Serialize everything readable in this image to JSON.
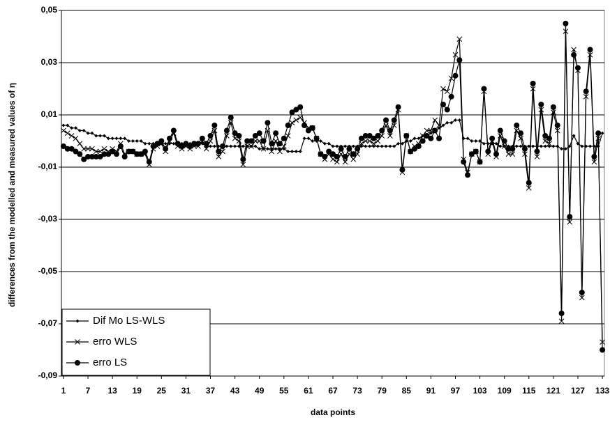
{
  "chart_data": {
    "type": "line",
    "x_label": "data points",
    "y_label": "differences from the modelled and  measured values of η",
    "x": [
      1,
      2,
      3,
      4,
      5,
      6,
      7,
      8,
      9,
      10,
      11,
      12,
      13,
      14,
      15,
      16,
      17,
      18,
      19,
      20,
      21,
      22,
      23,
      24,
      25,
      26,
      27,
      28,
      29,
      30,
      31,
      32,
      33,
      34,
      35,
      36,
      37,
      38,
      39,
      40,
      41,
      42,
      43,
      44,
      45,
      46,
      47,
      48,
      49,
      50,
      51,
      52,
      53,
      54,
      55,
      56,
      57,
      58,
      59,
      60,
      61,
      62,
      63,
      64,
      65,
      66,
      67,
      68,
      69,
      70,
      71,
      72,
      73,
      74,
      75,
      76,
      77,
      78,
      79,
      80,
      81,
      82,
      83,
      84,
      85,
      86,
      87,
      88,
      89,
      90,
      91,
      92,
      93,
      94,
      95,
      96,
      97,
      98,
      99,
      100,
      101,
      102,
      103,
      104,
      105,
      106,
      107,
      108,
      109,
      110,
      111,
      112,
      113,
      114,
      115,
      116,
      117,
      118,
      119,
      120,
      121,
      122,
      123,
      124,
      125,
      126,
      127,
      128,
      129,
      130,
      131,
      132,
      133
    ],
    "xlim": [
      0.5,
      133.5
    ],
    "xticks": [
      1,
      7,
      13,
      19,
      25,
      31,
      37,
      43,
      49,
      55,
      61,
      67,
      73,
      79,
      85,
      91,
      97,
      103,
      109,
      115,
      121,
      127,
      133
    ],
    "ylim": [
      -0.09,
      0.05
    ],
    "yticks": [
      {
        "value": -0.09,
        "label": "-0,09"
      },
      {
        "value": -0.07,
        "label": "-0,07"
      },
      {
        "value": -0.05,
        "label": "-0,05"
      },
      {
        "value": -0.03,
        "label": "-0,03"
      },
      {
        "value": -0.01,
        "label": "-0,01"
      },
      {
        "value": 0.01,
        "label": "0,01"
      },
      {
        "value": 0.03,
        "label": "0,03"
      },
      {
        "value": 0.05,
        "label": "0,05"
      }
    ],
    "grid": true,
    "legend": "lower left",
    "series": [
      {
        "name": "Dif Mo LS-WLS",
        "color": "#000000",
        "marker": "diamond",
        "values": [
          0.006,
          0.006,
          0.005,
          0.005,
          0.004,
          0.004,
          0.003,
          0.003,
          0.002,
          0.002,
          0.002,
          0.001,
          0.001,
          0.001,
          0.001,
          0.001,
          0,
          0,
          0,
          0,
          -0.001,
          -0.001,
          -0.001,
          -0.001,
          -0.001,
          -0.001,
          -0.001,
          -0.001,
          -0.001,
          -0.001,
          -0.001,
          -0.001,
          -0.001,
          -0.001,
          -0.001,
          -0.002,
          -0.002,
          -0.002,
          -0.002,
          -0.002,
          -0.002,
          -0.002,
          -0.002,
          -0.002,
          -0.002,
          -0.002,
          -0.002,
          -0.002,
          -0.003,
          -0.003,
          -0.003,
          -0.003,
          -0.003,
          -0.003,
          -0.003,
          -0.004,
          -0.004,
          -0.004,
          -0.004,
          0.001,
          0.001,
          0,
          0,
          0,
          -0.001,
          -0.001,
          -0.002,
          -0.002,
          -0.002,
          -0.002,
          -0.002,
          -0.002,
          -0.002,
          -0.002,
          -0.002,
          -0.002,
          -0.002,
          -0.002,
          -0.002,
          -0.002,
          -0.002,
          -0.002,
          -0.001,
          -0.001,
          0,
          0,
          0.001,
          0.001,
          0.002,
          0.002,
          0.003,
          0.004,
          0.005,
          0.006,
          0.007,
          0.007,
          0.008,
          0.008,
          0.001,
          0.001,
          0,
          0,
          0,
          -0.001,
          -0.001,
          -0.001,
          -0.001,
          -0.002,
          -0.002,
          -0.002,
          -0.002,
          -0.002,
          -0.002,
          -0.002,
          -0.002,
          -0.002,
          -0.002,
          -0.002,
          -0.002,
          -0.002,
          -0.002,
          -0.002,
          -0.003,
          -0.003,
          -0.002,
          0.002,
          -0.001,
          -0.002,
          -0.002,
          -0.002,
          -0.002,
          -0.002,
          0.003
        ]
      },
      {
        "name": "erro WLS",
        "color": "#000000",
        "marker": "cross",
        "values": [
          0.004,
          0.003,
          0.002,
          0.001,
          -0.001,
          -0.003,
          -0.003,
          -0.003,
          -0.004,
          -0.004,
          -0.003,
          -0.004,
          -0.003,
          -0.004,
          -0.001,
          -0.005,
          -0.004,
          -0.004,
          -0.005,
          -0.005,
          -0.005,
          -0.009,
          -0.003,
          -0.002,
          -0.001,
          -0.004,
          0,
          0.003,
          -0.002,
          -0.003,
          -0.002,
          -0.003,
          -0.002,
          -0.002,
          0,
          -0.003,
          0,
          0.004,
          -0.006,
          -0.004,
          0.002,
          0.007,
          0.001,
          0,
          -0.009,
          -0.002,
          -0.002,
          0,
          0,
          -0.003,
          0.004,
          -0.004,
          0,
          -0.004,
          -0.002,
          0.002,
          0.007,
          0.008,
          0.009,
          0.007,
          0.005,
          0.005,
          0.001,
          -0.005,
          -0.007,
          -0.005,
          -0.007,
          -0.008,
          -0.005,
          -0.008,
          -0.005,
          -0.007,
          -0.005,
          -0.001,
          0,
          0,
          -0.001,
          0,
          0.002,
          0.006,
          0.002,
          0.006,
          0.012,
          -0.012,
          0.002,
          -0.004,
          -0.002,
          -0.001,
          0.002,
          0.004,
          0.004,
          0.008,
          0.006,
          0.02,
          0.019,
          0.024,
          0.033,
          0.039,
          -0.007,
          -0.012,
          -0.005,
          -0.004,
          -0.008,
          0.019,
          -0.005,
          0,
          -0.006,
          0.002,
          -0.002,
          -0.005,
          -0.005,
          0.004,
          0.001,
          -0.005,
          -0.018,
          0.02,
          -0.006,
          0.012,
          0,
          -0.001,
          0.011,
          0.004,
          -0.069,
          0.042,
          -0.031,
          0.035,
          0.027,
          -0.06,
          0.017,
          0.033,
          -0.008,
          0.001,
          -0.077
        ]
      },
      {
        "name": "erro LS",
        "color": "#000000",
        "marker": "circle",
        "values": [
          -0.002,
          -0.003,
          -0.003,
          -0.004,
          -0.005,
          -0.007,
          -0.006,
          -0.006,
          -0.006,
          -0.006,
          -0.005,
          -0.005,
          -0.004,
          -0.005,
          -0.002,
          -0.006,
          -0.004,
          -0.004,
          -0.005,
          -0.005,
          -0.004,
          -0.008,
          -0.002,
          -0.001,
          0,
          -0.003,
          0.001,
          0.004,
          -0.001,
          -0.002,
          -0.001,
          -0.002,
          -0.001,
          -0.001,
          0.001,
          -0.001,
          0.002,
          0.006,
          -0.004,
          -0.002,
          0.004,
          0.009,
          0.003,
          0.002,
          -0.007,
          0,
          0,
          0.002,
          0.003,
          0,
          0.007,
          -0.001,
          0.003,
          -0.001,
          0.001,
          0.006,
          0.011,
          0.012,
          0.013,
          0.006,
          0.004,
          0.005,
          0.001,
          -0.005,
          -0.006,
          -0.004,
          -0.005,
          -0.006,
          -0.003,
          -0.006,
          -0.003,
          -0.005,
          -0.003,
          0.001,
          0.002,
          0.002,
          0.001,
          0.002,
          0.004,
          0.008,
          0.004,
          0.008,
          0.013,
          -0.011,
          0.002,
          -0.004,
          -0.003,
          -0.002,
          0,
          0.002,
          0.001,
          0.004,
          0.001,
          0.014,
          0.012,
          0.017,
          0.025,
          0.031,
          -0.008,
          -0.013,
          -0.005,
          -0.004,
          -0.008,
          0.02,
          -0.004,
          0.001,
          -0.005,
          0.004,
          0,
          -0.003,
          -0.003,
          0.006,
          0.003,
          -0.003,
          -0.016,
          0.022,
          -0.004,
          0.014,
          0.002,
          0.001,
          0.013,
          0.006,
          -0.066,
          0.045,
          -0.029,
          0.033,
          0.028,
          -0.058,
          0.019,
          0.035,
          -0.006,
          0.003,
          -0.08
        ]
      }
    ]
  }
}
